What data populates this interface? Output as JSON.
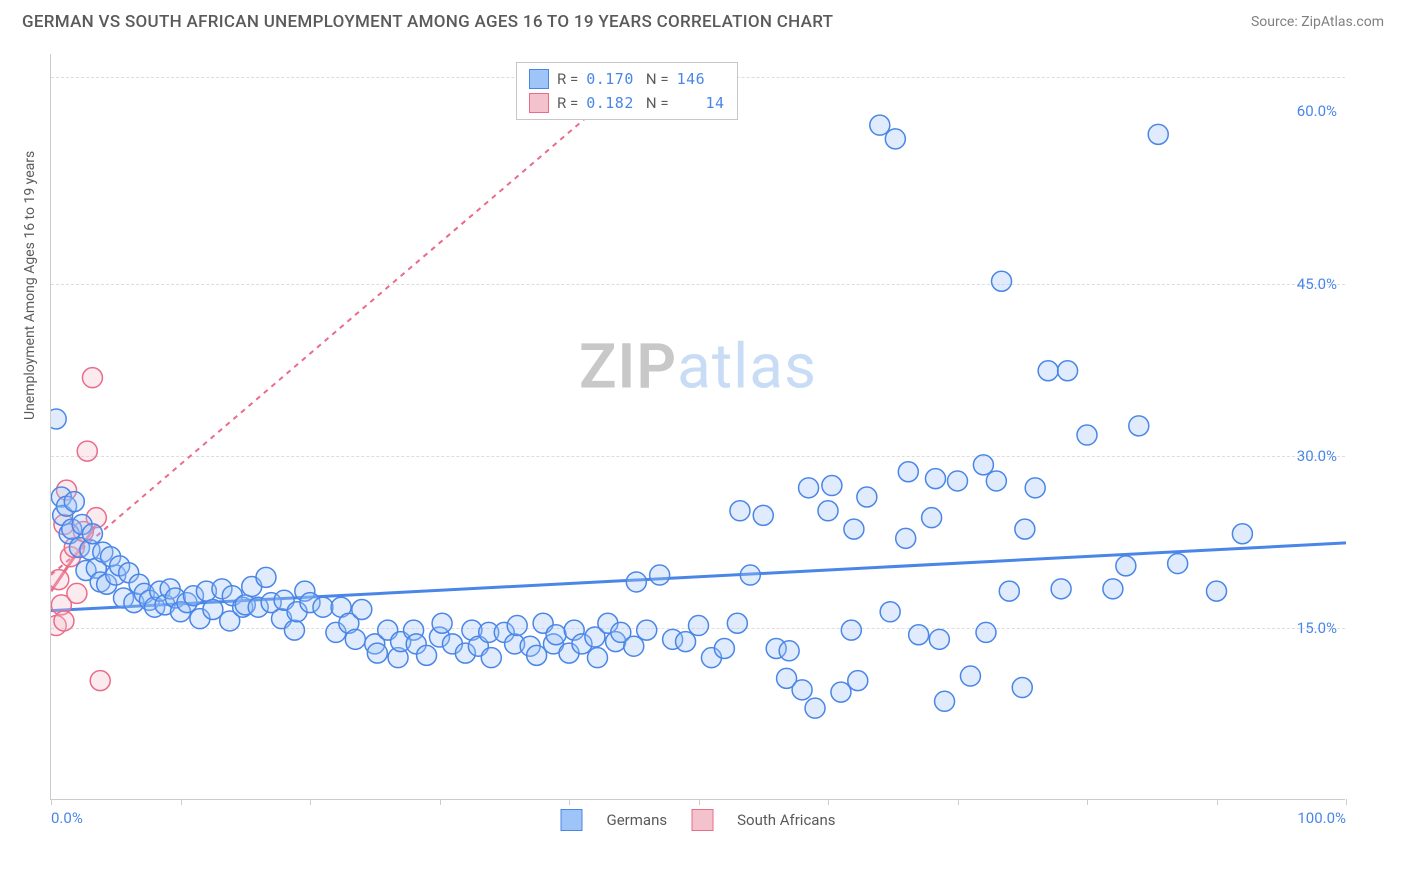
{
  "header": {
    "title": "GERMAN VS SOUTH AFRICAN UNEMPLOYMENT AMONG AGES 16 TO 19 YEARS CORRELATION CHART",
    "source": "Source: ZipAtlas.com"
  },
  "watermark": {
    "part1": "ZIP",
    "part2": "atlas"
  },
  "chart": {
    "type": "scatter",
    "background_color": "#ffffff",
    "grid_color": "#dddddd",
    "axis_color": "#cccccc",
    "xlim": [
      0,
      100
    ],
    "ylim": [
      0,
      65
    ],
    "x_ticks": [
      0,
      10,
      20,
      30,
      40,
      50,
      60,
      70,
      80,
      90,
      100
    ],
    "x_tick_labels": {
      "0": "0.0%",
      "100": "100.0%"
    },
    "y_gridlines": [
      15,
      30,
      45,
      63
    ],
    "y_tick_labels": {
      "15": "15.0%",
      "30": "30.0%",
      "45": "45.0%",
      "60": "60.0%"
    },
    "y_axis_title": "Unemployment Among Ages 16 to 19 years",
    "label_fontsize": 14,
    "tick_fontsize": 15,
    "tick_label_color": "#4a86e8",
    "marker_radius": 10,
    "marker_stroke_width": 1.5,
    "marker_fill_opacity": 0.32,
    "series": {
      "germans": {
        "label": "Germans",
        "stroke": "#4a86e8",
        "fill": "#9fc5f8",
        "stats": {
          "R": "0.170",
          "N": "146"
        },
        "trend": {
          "x1": 0,
          "y1": 16.5,
          "x2": 100,
          "y2": 22.4,
          "width": 3
        },
        "points": [
          [
            0.4,
            33.2
          ],
          [
            0.8,
            26.4
          ],
          [
            0.9,
            24.8
          ],
          [
            1.2,
            25.6
          ],
          [
            1.4,
            23.2
          ],
          [
            1.6,
            23.6
          ],
          [
            1.8,
            26.0
          ],
          [
            2.2,
            22.0
          ],
          [
            2.4,
            24.0
          ],
          [
            2.7,
            20.0
          ],
          [
            3.0,
            21.8
          ],
          [
            3.2,
            23.2
          ],
          [
            3.5,
            20.2
          ],
          [
            3.8,
            19.0
          ],
          [
            4.0,
            21.6
          ],
          [
            4.3,
            18.8
          ],
          [
            4.6,
            21.2
          ],
          [
            5.0,
            19.6
          ],
          [
            5.3,
            20.4
          ],
          [
            5.6,
            17.6
          ],
          [
            6.0,
            19.8
          ],
          [
            6.4,
            17.2
          ],
          [
            6.8,
            18.8
          ],
          [
            7.2,
            18.0
          ],
          [
            7.6,
            17.4
          ],
          [
            8.0,
            16.8
          ],
          [
            8.4,
            18.2
          ],
          [
            8.8,
            17.0
          ],
          [
            9.2,
            18.4
          ],
          [
            9.6,
            17.6
          ],
          [
            10.0,
            16.4
          ],
          [
            10.5,
            17.2
          ],
          [
            11.0,
            17.8
          ],
          [
            11.5,
            15.8
          ],
          [
            12.0,
            18.2
          ],
          [
            12.5,
            16.6
          ],
          [
            13.2,
            18.4
          ],
          [
            13.8,
            15.6
          ],
          [
            14.0,
            17.8
          ],
          [
            14.8,
            16.8
          ],
          [
            15.0,
            17.0
          ],
          [
            15.5,
            18.6
          ],
          [
            16.0,
            16.8
          ],
          [
            16.6,
            19.4
          ],
          [
            17.0,
            17.2
          ],
          [
            17.8,
            15.8
          ],
          [
            18.0,
            17.4
          ],
          [
            18.8,
            14.8
          ],
          [
            19.0,
            16.4
          ],
          [
            19.6,
            18.2
          ],
          [
            20.0,
            17.2
          ],
          [
            21.0,
            16.8
          ],
          [
            22.0,
            14.6
          ],
          [
            22.4,
            16.8
          ],
          [
            23.0,
            15.4
          ],
          [
            23.5,
            14.0
          ],
          [
            24.0,
            16.6
          ],
          [
            25.0,
            13.6
          ],
          [
            25.2,
            12.8
          ],
          [
            26.0,
            14.8
          ],
          [
            26.8,
            12.4
          ],
          [
            27.0,
            13.8
          ],
          [
            28.0,
            14.8
          ],
          [
            28.2,
            13.6
          ],
          [
            29.0,
            12.6
          ],
          [
            30.0,
            14.2
          ],
          [
            30.2,
            15.4
          ],
          [
            31.0,
            13.6
          ],
          [
            32.0,
            12.8
          ],
          [
            32.5,
            14.8
          ],
          [
            33.0,
            13.4
          ],
          [
            33.8,
            14.6
          ],
          [
            34.0,
            12.4
          ],
          [
            35.0,
            14.6
          ],
          [
            35.8,
            13.6
          ],
          [
            36.0,
            15.2
          ],
          [
            37.0,
            13.4
          ],
          [
            37.5,
            12.6
          ],
          [
            38.0,
            15.4
          ],
          [
            38.8,
            13.6
          ],
          [
            39.0,
            14.4
          ],
          [
            40.0,
            12.8
          ],
          [
            40.4,
            14.8
          ],
          [
            41.0,
            13.6
          ],
          [
            42.0,
            14.2
          ],
          [
            42.2,
            12.4
          ],
          [
            43.0,
            15.4
          ],
          [
            43.6,
            13.8
          ],
          [
            44.0,
            14.6
          ],
          [
            45.0,
            13.4
          ],
          [
            45.2,
            19.0
          ],
          [
            46.0,
            14.8
          ],
          [
            47.0,
            19.6
          ],
          [
            48.0,
            14.0
          ],
          [
            49.0,
            13.8
          ],
          [
            50.0,
            15.2
          ],
          [
            51.0,
            12.4
          ],
          [
            52.0,
            13.2
          ],
          [
            53.0,
            15.4
          ],
          [
            53.2,
            25.2
          ],
          [
            54.0,
            19.6
          ],
          [
            55.0,
            24.8
          ],
          [
            56.0,
            13.2
          ],
          [
            56.8,
            10.6
          ],
          [
            57.0,
            13.0
          ],
          [
            58.0,
            9.6
          ],
          [
            58.5,
            27.2
          ],
          [
            59.0,
            8.0
          ],
          [
            60.0,
            25.2
          ],
          [
            60.3,
            27.4
          ],
          [
            61.0,
            9.4
          ],
          [
            61.8,
            14.8
          ],
          [
            62.0,
            23.6
          ],
          [
            62.3,
            10.4
          ],
          [
            63.0,
            26.4
          ],
          [
            64.0,
            58.8
          ],
          [
            64.8,
            16.4
          ],
          [
            65.2,
            57.6
          ],
          [
            66.0,
            22.8
          ],
          [
            66.2,
            28.6
          ],
          [
            67.0,
            14.4
          ],
          [
            68.0,
            24.6
          ],
          [
            68.3,
            28.0
          ],
          [
            68.6,
            14.0
          ],
          [
            69.0,
            8.6
          ],
          [
            70.0,
            27.8
          ],
          [
            71.0,
            10.8
          ],
          [
            72.0,
            29.2
          ],
          [
            72.2,
            14.6
          ],
          [
            73.0,
            27.8
          ],
          [
            73.4,
            45.2
          ],
          [
            74.0,
            18.2
          ],
          [
            75.0,
            9.8
          ],
          [
            75.2,
            23.6
          ],
          [
            76.0,
            27.2
          ],
          [
            77.0,
            37.4
          ],
          [
            78.0,
            18.4
          ],
          [
            78.5,
            37.4
          ],
          [
            80.0,
            31.8
          ],
          [
            82.0,
            18.4
          ],
          [
            83.0,
            20.4
          ],
          [
            84.0,
            32.6
          ],
          [
            85.5,
            58.0
          ],
          [
            87.0,
            20.6
          ],
          [
            90.0,
            18.2
          ],
          [
            92.0,
            23.2
          ]
        ]
      },
      "south_africans": {
        "label": "South Africans",
        "stroke": "#ea6b8a",
        "fill": "#f4c2cd",
        "stats": {
          "R": "0.182",
          "N": "14"
        },
        "trend": {
          "x1": 0,
          "y1": 19.6,
          "x2": 45,
          "y2": 63,
          "width": 2,
          "dash": "5,5"
        },
        "trend_solid": {
          "x1": 0,
          "y1": 18.2,
          "x2": 3.5,
          "y2": 24.0,
          "width": 3
        },
        "points": [
          [
            0.4,
            15.2
          ],
          [
            0.6,
            19.2
          ],
          [
            0.8,
            17.0
          ],
          [
            1.0,
            15.6
          ],
          [
            1.0,
            24.0
          ],
          [
            1.2,
            27.0
          ],
          [
            1.5,
            21.2
          ],
          [
            1.8,
            22.0
          ],
          [
            2.0,
            18.0
          ],
          [
            2.5,
            23.4
          ],
          [
            2.8,
            30.4
          ],
          [
            3.2,
            36.8
          ],
          [
            3.5,
            24.6
          ],
          [
            3.8,
            10.4
          ]
        ]
      }
    }
  },
  "legend": {
    "germans": "Germans",
    "south_africans": "South Africans"
  }
}
